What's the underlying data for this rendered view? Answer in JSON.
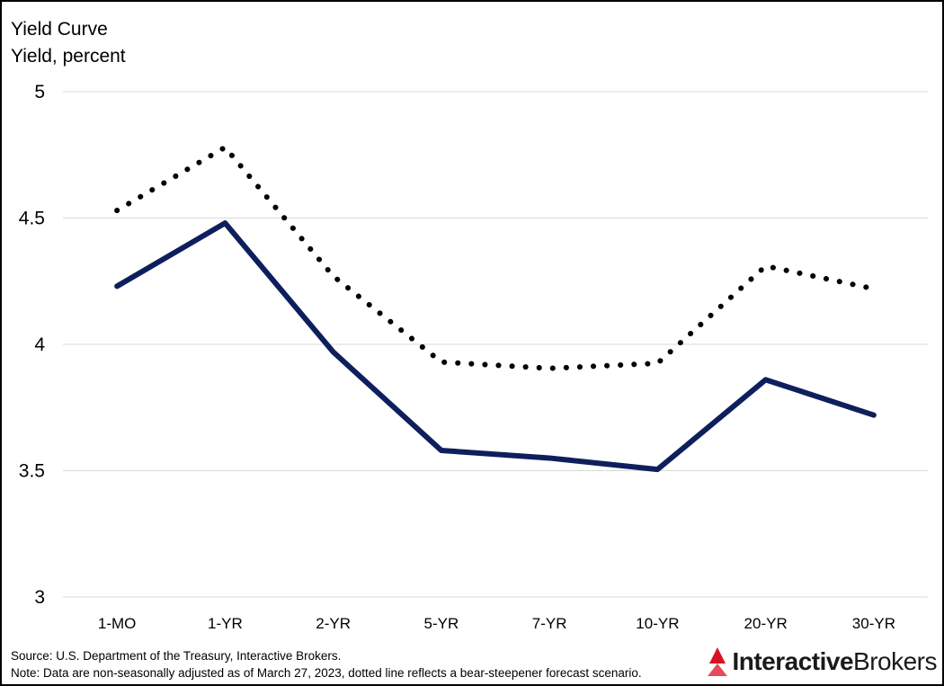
{
  "chart_data": {
    "type": "line",
    "title": "Yield Curve",
    "subtitle": "Yield, percent",
    "categories": [
      "1-MO",
      "1-YR",
      "2-YR",
      "5-YR",
      "7-YR",
      "10-YR",
      "20-YR",
      "30-YR"
    ],
    "series": [
      {
        "style": "solid",
        "color": "#0d1f5c",
        "values": [
          4.23,
          4.48,
          3.97,
          3.58,
          3.55,
          3.505,
          3.86,
          3.72
        ]
      },
      {
        "style": "dotted",
        "color": "#000000",
        "values": [
          4.53,
          4.78,
          4.27,
          3.93,
          3.905,
          3.925,
          4.31,
          4.22
        ]
      }
    ],
    "ylim": [
      3,
      5
    ],
    "yticks": [
      "3",
      "3.5",
      "4",
      "4.5",
      "5"
    ],
    "grid": true,
    "legend": "none"
  },
  "footer": {
    "source": "Source: U.S. Department of the Treasury, Interactive Brokers.",
    "note": "Note: Data are non-seasonally adjusted as of March 27, 2023, dotted line reflects a bear-steepener forecast scenario."
  },
  "logo": {
    "icon": "interactive-brokers-logo-icon",
    "accent": "#d81222",
    "text_bold": "Interactive",
    "text_light": "Brokers"
  }
}
